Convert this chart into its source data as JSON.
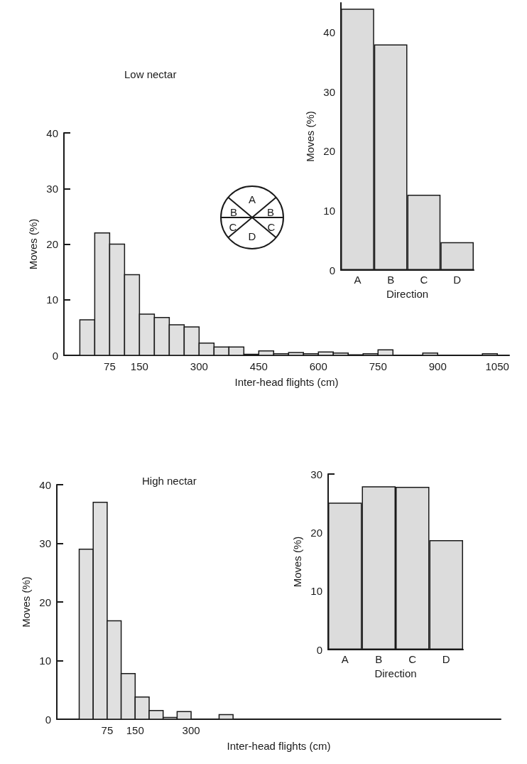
{
  "chart_data": [
    {
      "type": "histogram",
      "title": "Low nectar",
      "xlabel": "Inter-head flights (cm)",
      "ylabel": "Moves (%)",
      "color": "#e0e0e0",
      "bins": [
        0,
        37.5,
        75,
        112.5,
        150,
        187.5,
        225,
        262.5,
        300,
        337.5,
        375,
        412.5,
        450,
        487.5,
        525,
        562.5,
        600,
        637.5,
        675,
        712.5,
        750,
        787.5,
        825,
        862.5,
        900,
        937.5,
        975,
        1012.5,
        1050
      ],
      "values": [
        6.4,
        22,
        20,
        14.5,
        7.4,
        6.8,
        5.5,
        5.1,
        2.2,
        1.5,
        1.5,
        0.2,
        0.8,
        0.3,
        0.5,
        0.3,
        0.6,
        0.4,
        0.1,
        0.3,
        1.0,
        0,
        0,
        0.4,
        0,
        0,
        0,
        0.3
      ],
      "xlim": [
        -40,
        1080
      ],
      "xticks": [
        75,
        150,
        300,
        450,
        600,
        750,
        900,
        1050
      ],
      "ylim": [
        0,
        40
      ],
      "yticks": [
        0,
        10,
        20,
        30,
        40
      ],
      "annotations": [
        "A",
        "B",
        "B",
        "C",
        "C",
        "D"
      ]
    },
    {
      "type": "bar",
      "xlabel": "Direction",
      "ylabel": "Moves (%)",
      "color": "#dcdcdc",
      "categories": [
        "A",
        "B",
        "C",
        "D"
      ],
      "values": [
        44,
        38,
        12.7,
        4.7
      ],
      "ylim": [
        0,
        45
      ],
      "yticks": [
        0,
        10,
        20,
        30,
        40
      ]
    },
    {
      "type": "histogram",
      "title": "High nectar",
      "xlabel": "Inter-head flights (cm)",
      "ylabel": "Moves (%)",
      "color": "#e0e0e0",
      "bins": [
        0,
        37.5,
        75,
        112.5,
        150,
        187.5,
        225,
        262.5,
        300,
        337.5,
        375,
        412.5
      ],
      "values": [
        29,
        37,
        16.8,
        7.8,
        3.8,
        1.5,
        0.3,
        1.3,
        0,
        0,
        0.8
      ],
      "xlim": [
        -60,
        1130
      ],
      "xticks": [
        75,
        150,
        300
      ],
      "ylim": [
        0,
        40
      ],
      "yticks": [
        0,
        10,
        20,
        30,
        40
      ]
    },
    {
      "type": "bar",
      "xlabel": "Direction",
      "ylabel": "Moves (%)",
      "color": "#dcdcdc",
      "categories": [
        "A",
        "B",
        "C",
        "D"
      ],
      "values": [
        25.1,
        27.9,
        27.8,
        18.7
      ],
      "ylim": [
        0,
        30
      ],
      "yticks": [
        0,
        10,
        20,
        30
      ]
    }
  ]
}
